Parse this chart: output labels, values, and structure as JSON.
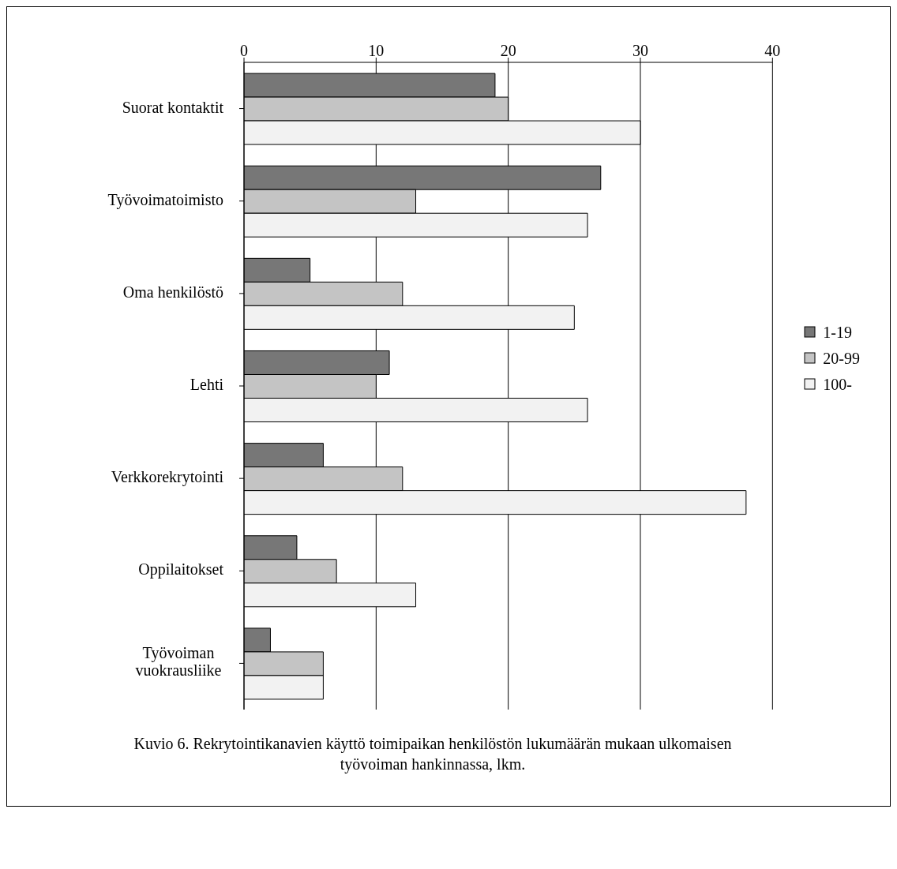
{
  "chart_data": {
    "type": "bar",
    "orientation": "horizontal",
    "categories": [
      "Suorat kontaktit",
      "Työvoimatoimisto",
      "Oma henkilöstö",
      "Lehti",
      "Verkkorekrytointi",
      "Oppilaitokset",
      "Työvoiman vuokrausliike"
    ],
    "series": [
      {
        "name": "1-19",
        "color": "#777777",
        "values": [
          19,
          27,
          5,
          11,
          6,
          4,
          2
        ]
      },
      {
        "name": "20-99",
        "color": "#c4c4c4",
        "values": [
          20,
          13,
          12,
          10,
          12,
          7,
          6
        ]
      },
      {
        "name": "100-",
        "color": "#f2f2f2",
        "values": [
          30,
          26,
          25,
          26,
          38,
          13,
          6
        ]
      }
    ],
    "xlim": [
      0,
      40
    ],
    "xticks": [
      0,
      10,
      20,
      30,
      40
    ],
    "grid": "x",
    "legend": "right",
    "annotations": [
      "Kuvio 6. Rekrytointikanavien käyttö toimipaikan henkilöstön lukumäärän mukaan ulkomaisen työvoiman hankinnassa, lkm."
    ]
  }
}
